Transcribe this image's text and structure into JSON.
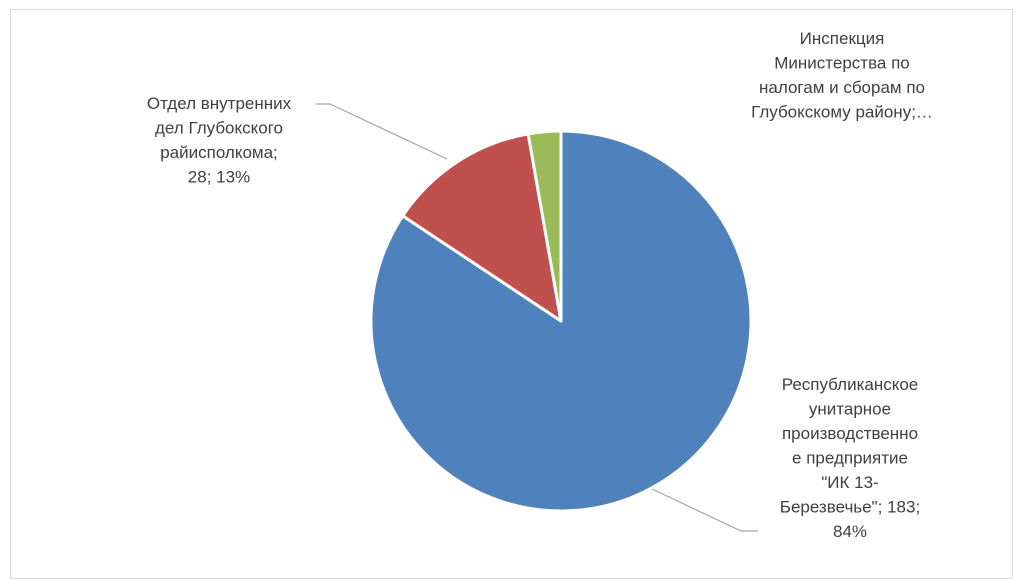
{
  "chart_data": {
    "type": "pie",
    "title": "",
    "legend": "none",
    "slices": [
      {
        "label": "Республиканское унитарное производственное предприятие \"ИК 13-Березвечье\"",
        "value": 183,
        "percent": "84%",
        "color": "#4f81bd",
        "label_lines": [
          "Республиканское",
          "унитарное",
          "производственно",
          "е предприятие",
          "\"ИК 13-",
          "Березвечье\"; 183;",
          "84%"
        ]
      },
      {
        "label": "Отдел внутренних дел Глубокского райисполкома",
        "value": 28,
        "percent": "13%",
        "color": "#c0504d",
        "label_lines": [
          "Отдел внутренних",
          "дел Глубокского",
          "райисполкома;",
          "28; 13%"
        ]
      },
      {
        "label": "Инспекция Министерства по налогам и сборам по Глубокскому району",
        "value": 6,
        "percent": "",
        "color": "#9bbb59",
        "label_lines": [
          "Инспекция",
          "Министерства по",
          "налогам и сборам по",
          "Глубокскому району;…"
        ]
      }
    ]
  }
}
